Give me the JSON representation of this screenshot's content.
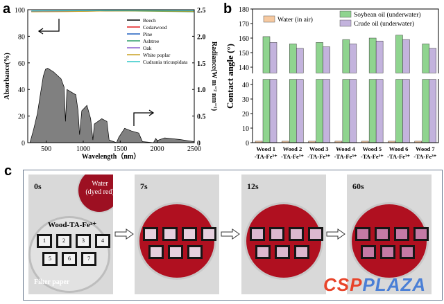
{
  "panels": {
    "a": "a",
    "b": "b",
    "c": "c"
  },
  "chart_data": [
    {
      "type": "line",
      "title": "",
      "xlabel": "Wavelength（nm）",
      "ylabel": "Absorbance(%)",
      "y2label": "Radiance(W m⁻² nm⁻¹)",
      "xlim": [
        250,
        2500
      ],
      "ylim": [
        0,
        100
      ],
      "y2lim": [
        0,
        2.5
      ],
      "xticks": [
        "500",
        "1000",
        "1500",
        "2000",
        "2500"
      ],
      "yticks": [
        "0",
        "20",
        "40",
        "60",
        "80",
        "100"
      ],
      "y2ticks": [
        "0",
        "0.5",
        "1.0",
        "1.5",
        "2.0",
        "2.5"
      ],
      "legend_position": "top-right",
      "series": [
        {
          "name": "Beech",
          "color": "#000000",
          "values": [
            98.5,
            98.8,
            99,
            99.2,
            99
          ]
        },
        {
          "name": "Cedarwood",
          "color": "#e41a1c",
          "values": [
            98.8,
            99,
            99.2,
            99.3,
            99.1
          ]
        },
        {
          "name": "Pine",
          "color": "#1f5fbf",
          "values": [
            99,
            99.1,
            99.3,
            99.4,
            99.2
          ]
        },
        {
          "name": "Ashtree",
          "color": "#2e9e6a",
          "values": [
            98.6,
            98.7,
            99.2,
            98.9,
            98.4
          ]
        },
        {
          "name": "Oak",
          "color": "#8b5fcf",
          "values": [
            98.9,
            99,
            99.2,
            99.3,
            99.1
          ]
        },
        {
          "name": "White poplar",
          "color": "#c8a020",
          "values": [
            98.4,
            98.6,
            99,
            99.1,
            98.8
          ]
        },
        {
          "name": "Cudrania tricuspidata",
          "color": "#2fc7c7",
          "values": [
            99.1,
            99.2,
            99.4,
            99.5,
            99.3
          ]
        }
      ],
      "series_x": [
        300,
        800,
        1300,
        1800,
        2500
      ],
      "solar_spectrum": {
        "name": "Solar radiance",
        "color": "#808080",
        "x": [
          280,
          330,
          380,
          420,
          460,
          490,
          520,
          600,
          700,
          740,
          760,
          780,
          900,
          930,
          950,
          980,
          1050,
          1100,
          1130,
          1150,
          1250,
          1320,
          1350,
          1450,
          1480,
          1560,
          1650,
          1750,
          1800,
          1950,
          1980,
          2000,
          2100,
          2300,
          2500
        ],
        "y": [
          0,
          0.25,
          0.55,
          0.9,
          1.25,
          1.38,
          1.4,
          1.33,
          1.2,
          1.05,
          0.4,
          1.0,
          0.9,
          0.6,
          0.15,
          0.6,
          0.7,
          0.45,
          0.05,
          0.35,
          0.45,
          0.4,
          0.05,
          0,
          0.1,
          0.27,
          0.22,
          0.18,
          0.02,
          0,
          0.08,
          0.04,
          0.09,
          0.06,
          0.02
        ]
      }
    },
    {
      "type": "bar",
      "title": "",
      "xlabel": "",
      "ylabel": "Contact angle (°)",
      "categories": [
        "Wood 1",
        "Wood 2",
        "Wood 3",
        "Wood 4",
        "Wood 5",
        "Wood 6",
        "Wood 7"
      ],
      "category_sub": "-TA-Fe³⁺",
      "ylim": [
        0,
        180
      ],
      "axis_break": [
        45,
        135
      ],
      "yticks_lower": [
        "0",
        "10",
        "20",
        "30",
        "40"
      ],
      "yticks_upper": [
        "140",
        "150",
        "160",
        "170",
        "180"
      ],
      "legend_position": "top",
      "series": [
        {
          "name": "Water (in air)",
          "color": "#f6c9a0",
          "values": [
            1,
            1,
            1,
            1,
            1,
            1,
            1
          ]
        },
        {
          "name": "Soybean oil (underwater)",
          "color": "#8fd48f",
          "values": [
            161,
            156,
            157,
            159,
            160,
            162,
            156
          ]
        },
        {
          "name": "Crude oil (underwater)",
          "color": "#c3b3dd",
          "values": [
            157,
            153,
            154,
            156,
            158,
            159,
            153
          ]
        }
      ]
    }
  ],
  "photos": {
    "times": [
      "0s",
      "7s",
      "12s",
      "60s"
    ],
    "water_label": "Water\n(dyed red)",
    "sample_label": "Wood-TA-Fe³⁺",
    "filter_label": "Filter paper",
    "numbers": [
      "1",
      "2",
      "3",
      "4",
      "5",
      "6",
      "7"
    ]
  },
  "watermark": {
    "left": "CSP",
    "right": "PLAZA"
  }
}
